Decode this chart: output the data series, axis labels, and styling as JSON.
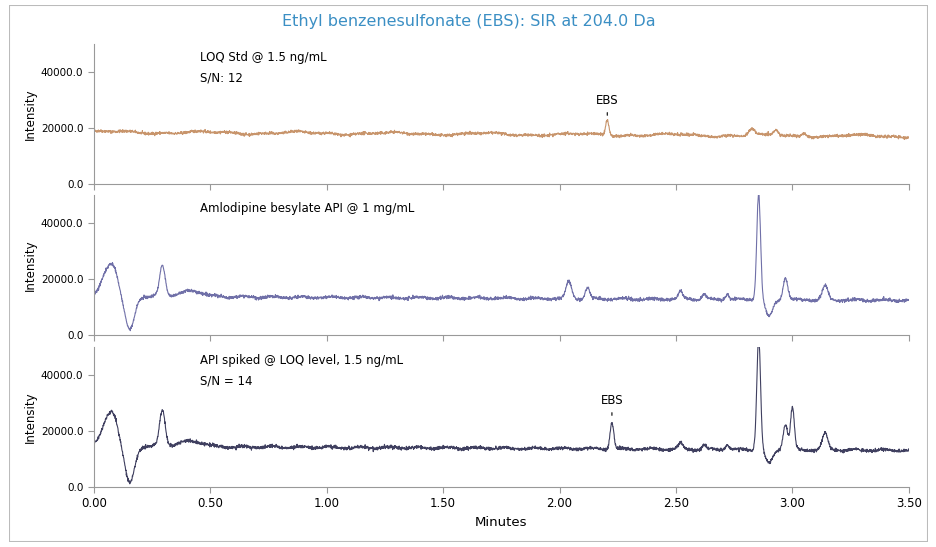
{
  "title": "Ethyl benzenesulfonate (EBS): SIR at 204.0 Da",
  "title_color": "#3B8FC4",
  "xlabel": "Minutes",
  "ylabel": "Intensity",
  "xlim": [
    0.0,
    3.5
  ],
  "ylim": [
    0.0,
    50000
  ],
  "yticks": [
    0.0,
    20000.0,
    40000.0
  ],
  "ytick_labels": [
    "0.0",
    "20000.0",
    "40000.0"
  ],
  "xticks": [
    0.0,
    0.5,
    1.0,
    1.5,
    2.0,
    2.5,
    3.0,
    3.5
  ],
  "xtick_labels": [
    "0.00",
    "0.50",
    "1.00",
    "1.50",
    "2.00",
    "2.50",
    "3.00",
    "3.50"
  ],
  "panel1_label": "LOQ Std @ 1.5 ng/mL",
  "panel1_sublabel": "S/N: 12",
  "panel1_color": "#C8956C",
  "panel2_label": "Amlodipine besylate API @ 1 mg/mL",
  "panel2_color": "#7070A8",
  "panel3_label": "API spiked @ LOQ level, 1.5 ng/mL",
  "panel3_sublabel": "S/N = 14",
  "panel3_color": "#404060",
  "background_color": "#FFFFFF",
  "panel_bg_color": "#FFFFFF",
  "fig_bg_color": "#FFFFFF",
  "outer_box_color": "#CCCCCC",
  "seed": 42
}
